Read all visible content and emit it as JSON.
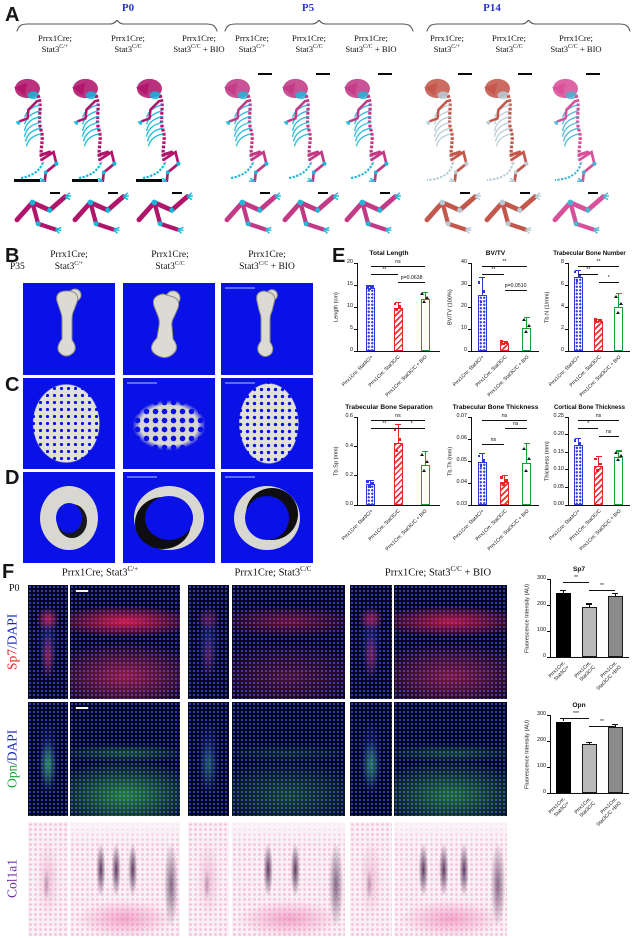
{
  "panels": {
    "A": "A",
    "B": "B",
    "C": "C",
    "D": "D",
    "E": "E",
    "F": "F"
  },
  "colors": {
    "timepoint_blue": "#2a35c8",
    "micro_ct_bg": "#0a11e6",
    "bar_blue": "#2b3bd6",
    "bar_red": "#e8251f",
    "bar_green": "#18a035",
    "sp7_red": "#e8251f",
    "opn_green": "#18a035",
    "dapi_blue": "#1b2bb8",
    "col1a1_purple": "#7030a0"
  },
  "panelA": {
    "timepoints": [
      "P0",
      "P5",
      "P14"
    ],
    "genotypes": [
      {
        "line1": "Prrx1Cre;",
        "gene": "Stat3",
        "sup": "C/+",
        "suffix": ""
      },
      {
        "line1": "Prrx1Cre;",
        "gene": "Stat3",
        "sup": "C/C",
        "suffix": ""
      },
      {
        "line1": "Prrx1Cre;",
        "gene": "Stat3",
        "sup": "C/C",
        "suffix": " + BIO"
      }
    ]
  },
  "panelB": {
    "age": "P35"
  },
  "panelF": {
    "age": "P0",
    "rows": [
      {
        "marker": "Sp7",
        "marker_color": "#e8251f",
        "rest": "/DAPI",
        "rest_color": "#1b2bb8"
      },
      {
        "marker": "Opn",
        "marker_color": "#18a035",
        "rest": "/DAPI",
        "rest_color": "#1b2bb8"
      },
      {
        "marker": "Col1a1",
        "marker_color": "#7030a0",
        "rest": "",
        "rest_color": "#7030a0"
      }
    ]
  },
  "chart_data": [
    {
      "id": "total-length",
      "type": "bar",
      "title": "Total Length",
      "ylabel": "Length (cm)",
      "ylim": [
        0,
        20
      ],
      "yticks": [
        0,
        5,
        10,
        15,
        20
      ],
      "ytick_labels": [
        "0",
        "5",
        "10",
        "15",
        "20"
      ],
      "categories": [
        "Prrx1Cre; Stat3C/+",
        "Prrx1Cre; Stat3C/C",
        "Prrx1Cre; Stat3C/C + BIO"
      ],
      "values": [
        14.3,
        9.8,
        11.8
      ],
      "errors": [
        0.6,
        1.3,
        1.6
      ],
      "styles": [
        "blue",
        "red",
        "green"
      ],
      "sig": [
        {
          "a": 0,
          "b": 2,
          "t": "ns",
          "row": 0
        },
        {
          "a": 0,
          "b": 1,
          "t": "**",
          "row": 1
        },
        {
          "a": 1,
          "b": 2,
          "t": "p=0.0638",
          "row": 2
        }
      ]
    },
    {
      "id": "bvtv",
      "type": "bar",
      "title": "BV/TV",
      "ylabel": "BV/TV (100%)",
      "ylim": [
        0,
        40
      ],
      "yticks": [
        0,
        10,
        20,
        30,
        40
      ],
      "ytick_labels": [
        "0",
        "10",
        "20",
        "30",
        "40"
      ],
      "categories": [
        "Prrx1Cre; Stat3C/+",
        "Prrx1Cre; Stat3C/C",
        "Prrx1Cre; Stat3C/C + BIO"
      ],
      "values": [
        25.5,
        3.5,
        10.5
      ],
      "errors": [
        8,
        1,
        5
      ],
      "styles": [
        "blue",
        "red",
        "green"
      ],
      "sig": [
        {
          "a": 0,
          "b": 2,
          "t": "**",
          "row": 0
        },
        {
          "a": 0,
          "b": 1,
          "t": "**",
          "row": 1
        },
        {
          "a": 1,
          "b": 2,
          "t": "p=0.0510",
          "row": 3
        }
      ]
    },
    {
      "id": "tbn",
      "type": "bar",
      "title": "Trabecular Bone Number",
      "ylabel": "Tb.N (1/mm)",
      "ylim": [
        0,
        8
      ],
      "yticks": [
        0,
        2,
        4,
        6,
        8
      ],
      "ytick_labels": [
        "0",
        "2",
        "4",
        "6",
        "8"
      ],
      "categories": [
        "Prrx1Cre; Stat3C/+",
        "Prrx1Cre; Stat3C/C",
        "Prrx1Cre; Stat3C/C + BIO"
      ],
      "values": [
        6.7,
        2.7,
        4.0
      ],
      "errors": [
        0.7,
        0.2,
        1.3
      ],
      "styles": [
        "blue",
        "red",
        "green"
      ],
      "sig": [
        {
          "a": 0,
          "b": 2,
          "t": "**",
          "row": 0
        },
        {
          "a": 0,
          "b": 1,
          "t": "**",
          "row": 1
        },
        {
          "a": 1,
          "b": 2,
          "t": "*",
          "row": 2
        }
      ]
    },
    {
      "id": "tbsp",
      "type": "bar",
      "title": "Trabecular Bone Separation",
      "ylabel": "Tb.Sp (mm)",
      "ylim": [
        0,
        0.6
      ],
      "yticks": [
        0,
        0.2,
        0.4,
        0.6
      ],
      "ytick_labels": [
        "0.0",
        "0.2",
        "0.4",
        "0.6"
      ],
      "categories": [
        "Prrx1Cre; Stat3C/+",
        "Prrx1Cre; Stat3C/C",
        "Prrx1Cre; Stat3C/C + BIO"
      ],
      "values": [
        0.14,
        0.42,
        0.27
      ],
      "errors": [
        0.03,
        0.13,
        0.1
      ],
      "styles": [
        "blue",
        "red",
        "green"
      ],
      "sig": [
        {
          "a": 0,
          "b": 2,
          "t": "ns",
          "row": 0
        },
        {
          "a": 0,
          "b": 1,
          "t": "**",
          "row": 1
        },
        {
          "a": 1,
          "b": 2,
          "t": "*",
          "row": 1
        }
      ]
    },
    {
      "id": "tbth",
      "type": "bar",
      "title": "Trabecular Bone Thickness",
      "ylabel": "Tb.Th (mm)",
      "ylim": [
        0.03,
        0.07
      ],
      "yticks": [
        0.03,
        0.04,
        0.05,
        0.06,
        0.07
      ],
      "ytick_labels": [
        "0.03",
        "0.04",
        "0.05",
        "0.06",
        "0.07"
      ],
      "categories": [
        "Prrx1Cre; Stat3C/+",
        "Prrx1Cre; Stat3C/C",
        "Prrx1Cre; Stat3C/C + BIO"
      ],
      "values": [
        0.0495,
        0.0405,
        0.049
      ],
      "errors": [
        0.004,
        0.003,
        0.009
      ],
      "styles": [
        "blue",
        "red",
        "green"
      ],
      "sig": [
        {
          "a": 0,
          "b": 2,
          "t": "ns",
          "row": 0
        },
        {
          "a": 1,
          "b": 2,
          "t": "ns",
          "row": 1
        },
        {
          "a": 0,
          "b": 1,
          "t": "ns",
          "row": 3
        }
      ]
    },
    {
      "id": "cortical",
      "type": "bar",
      "title": "Cortical Bone Thickness",
      "ylabel": "Thickness (mm)",
      "ylim": [
        0,
        0.25
      ],
      "yticks": [
        0,
        0.05,
        0.1,
        0.15,
        0.2,
        0.25
      ],
      "ytick_labels": [
        "0.00",
        "0.05",
        "0.10",
        "0.15",
        "0.20",
        "0.25"
      ],
      "categories": [
        "Prrx1Cre; Stat3C/+",
        "Prrx1Cre; Stat3C/C",
        "Prrx1Cre; Stat3C/C + BIO"
      ],
      "values": [
        0.17,
        0.11,
        0.135
      ],
      "errors": [
        0.02,
        0.03,
        0.02
      ],
      "styles": [
        "blue",
        "red",
        "green"
      ],
      "sig": [
        {
          "a": 0,
          "b": 2,
          "t": "ns",
          "row": 0
        },
        {
          "a": 0,
          "b": 1,
          "t": "*",
          "row": 1
        },
        {
          "a": 1,
          "b": 2,
          "t": "ns",
          "row": 2
        }
      ]
    },
    {
      "id": "sp7",
      "type": "bar",
      "title": "Sp7",
      "ylabel": "Fluorescence Intensity (AU)",
      "ylim": [
        0,
        300
      ],
      "yticks": [
        0,
        100,
        200,
        300
      ],
      "ytick_labels": [
        "0",
        "100",
        "200",
        "300"
      ],
      "categories": [
        "Prrx1Cre;\nStat3C/+",
        "Prrx1Cre;\nStat3C/C",
        "Prrx1Cre;\nStat3C/C +BIO"
      ],
      "values": [
        248,
        193,
        235
      ],
      "errors": [
        10,
        13,
        10
      ],
      "styles": [
        "black",
        "lgray",
        "dgray"
      ],
      "sig": [
        {
          "a": 0,
          "b": 1,
          "t": "**",
          "row": 0
        },
        {
          "a": 1,
          "b": 2,
          "t": "**",
          "row": 1
        }
      ]
    },
    {
      "id": "opn",
      "type": "bar",
      "title": "Opn",
      "ylabel": "Fluorescence Intensity (AU)",
      "ylim": [
        0,
        300
      ],
      "yticks": [
        0,
        100,
        200,
        300
      ],
      "ytick_labels": [
        "0",
        "100",
        "200",
        "300"
      ],
      "categories": [
        "Prrx1Cre;\nStat3C/+",
        "Prrx1Cre;\nStat3C/C",
        "Prrx1Cre;\nStat3C/C +BIO"
      ],
      "values": [
        275,
        190,
        252
      ],
      "errors": [
        13,
        8,
        14
      ],
      "styles": [
        "black",
        "lgray",
        "dgray"
      ],
      "sig": [
        {
          "a": 0,
          "b": 1,
          "t": "***",
          "row": 0
        },
        {
          "a": 1,
          "b": 2,
          "t": "**",
          "row": 1
        }
      ]
    }
  ]
}
